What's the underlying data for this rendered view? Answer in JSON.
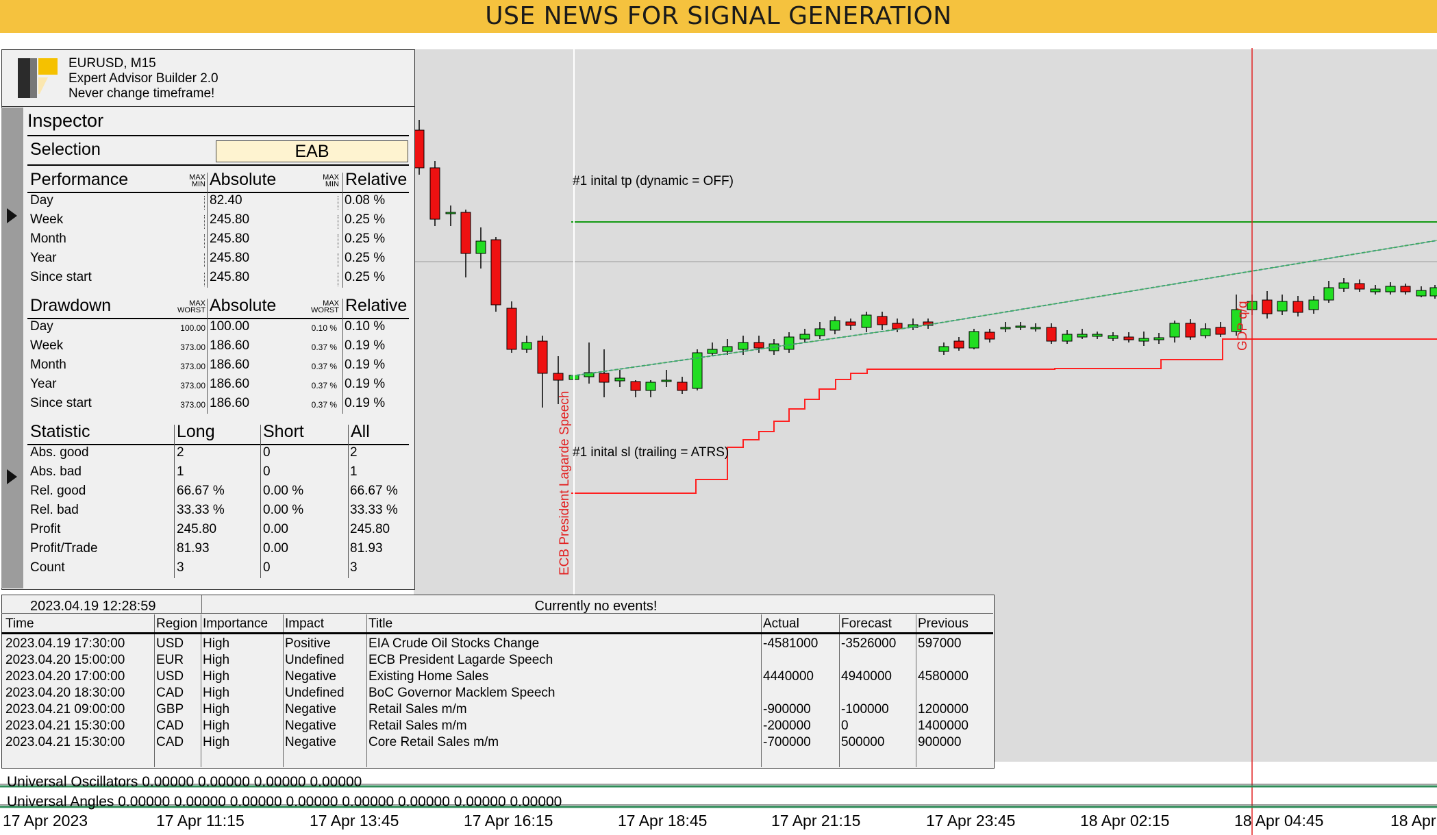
{
  "banner": "USE NEWS FOR SIGNAL GENERATION",
  "header": {
    "symbol": "EURUSD, M15",
    "product": "Expert Advisor Builder 2.0",
    "warning": "Never change timeframe!"
  },
  "inspector": {
    "title": "Inspector",
    "selection_label": "Selection",
    "selection_value": "EAB",
    "performance": {
      "heading": "Performance",
      "col_abs": "Absolute",
      "col_rel": "Relative",
      "max": "MAX",
      "min": "MIN",
      "rows": [
        {
          "label": "Day",
          "abs": "82.40",
          "rel": "0.08 %"
        },
        {
          "label": "Week",
          "abs": "245.80",
          "rel": "0.25 %"
        },
        {
          "label": "Month",
          "abs": "245.80",
          "rel": "0.25 %"
        },
        {
          "label": "Year",
          "abs": "245.80",
          "rel": "0.25 %"
        },
        {
          "label": "Since start",
          "abs": "245.80",
          "rel": "0.25 %"
        }
      ]
    },
    "drawdown": {
      "heading": "Drawdown",
      "col_abs": "Absolute",
      "col_rel": "Relative",
      "max": "MAX",
      "worst": "WORST",
      "rows": [
        {
          "label": "Day",
          "worst_abs": "100.00",
          "abs": "100.00",
          "worst_rel": "0.10 %",
          "rel": "0.10 %"
        },
        {
          "label": "Week",
          "worst_abs": "373.00",
          "abs": "186.60",
          "worst_rel": "0.37 %",
          "rel": "0.19 %"
        },
        {
          "label": "Month",
          "worst_abs": "373.00",
          "abs": "186.60",
          "worst_rel": "0.37 %",
          "rel": "0.19 %"
        },
        {
          "label": "Year",
          "worst_abs": "373.00",
          "abs": "186.60",
          "worst_rel": "0.37 %",
          "rel": "0.19 %"
        },
        {
          "label": "Since start",
          "worst_abs": "373.00",
          "abs": "186.60",
          "worst_rel": "0.37 %",
          "rel": "0.19 %"
        }
      ]
    },
    "statistic": {
      "heading": "Statistic",
      "col_long": "Long",
      "col_short": "Short",
      "col_all": "All",
      "rows": [
        {
          "label": "Abs. good",
          "long": "2",
          "short": "0",
          "all": "2"
        },
        {
          "label": "Abs. bad",
          "long": "1",
          "short": "0",
          "all": "1"
        },
        {
          "label": "Rel. good",
          "long": "66.67 %",
          "short": "0.00 %",
          "all": "66.67 %"
        },
        {
          "label": "Rel. bad",
          "long": "33.33 %",
          "short": "0.00 %",
          "all": "33.33 %"
        },
        {
          "label": "Profit",
          "long": "245.80",
          "short": "0.00",
          "all": "245.80"
        },
        {
          "label": "Profit/Trade",
          "long": "81.93",
          "short": "0.00",
          "all": "81.93"
        },
        {
          "label": "Count",
          "long": "3",
          "short": "0",
          "all": "3"
        }
      ]
    }
  },
  "news": {
    "datetime": "2023.04.19 12:28:59",
    "status": "Currently no events!",
    "columns": [
      "Time",
      "Region",
      "Importance",
      "Impact",
      "Title",
      "Actual",
      "Forecast",
      "Previous"
    ],
    "rows": [
      [
        "2023.04.19 17:30:00",
        "USD",
        "High",
        "Positive",
        "EIA Crude Oil Stocks Change",
        "-4581000",
        "-3526000",
        "597000"
      ],
      [
        "2023.04.20 15:00:00",
        "EUR",
        "High",
        "Undefined",
        "ECB President Lagarde Speech",
        "",
        "",
        ""
      ],
      [
        "2023.04.20 17:00:00",
        "USD",
        "High",
        "Negative",
        "Existing Home Sales",
        "4440000",
        "4940000",
        "4580000"
      ],
      [
        "2023.04.20 18:30:00",
        "CAD",
        "High",
        "Undefined",
        "BoC Governor Macklem Speech",
        "",
        "",
        ""
      ],
      [
        "2023.04.21 09:00:00",
        "GBP",
        "High",
        "Negative",
        "Retail Sales m/m",
        "-900000",
        "-100000",
        "1200000"
      ],
      [
        "2023.04.21 15:30:00",
        "CAD",
        "High",
        "Negative",
        "Retail Sales m/m",
        "-200000",
        "0",
        "1400000"
      ],
      [
        "2023.04.21 15:30:00",
        "CAD",
        "High",
        "Negative",
        "Core Retail Sales m/m",
        "-700000",
        "500000",
        "900000"
      ]
    ]
  },
  "chart": {
    "tp_label": "#1 inital tp (dynamic = OFF)",
    "sl_label": "#1 inital sl (trailing = ATRS)",
    "event1_label": "ECB President Lagarde Speech",
    "event2_label": "GDP q/q",
    "osc_label": "Universal Oscillators 0.00000 0.00000 0.00000 0.00000",
    "angles_label": "Universal Angles 0.00000 0.00000 0.00000 0.00000 0.00000 0.00000 0.00000 0.00000",
    "time_axis": [
      "17 Apr 2023",
      "17 Apr 11:15",
      "17 Apr 13:45",
      "17 Apr 16:15",
      "17 Apr 18:45",
      "17 Apr 21:15",
      "17 Apr 23:45",
      "18 Apr 02:15",
      "18 Apr 04:45",
      "18 Apr"
    ],
    "colors": {
      "up": "#22dd22",
      "down": "#ee1111",
      "tp": "#119911",
      "sl": "#ff2020",
      "trend": "#2a8f9a",
      "background": "#dcdcdc"
    }
  }
}
